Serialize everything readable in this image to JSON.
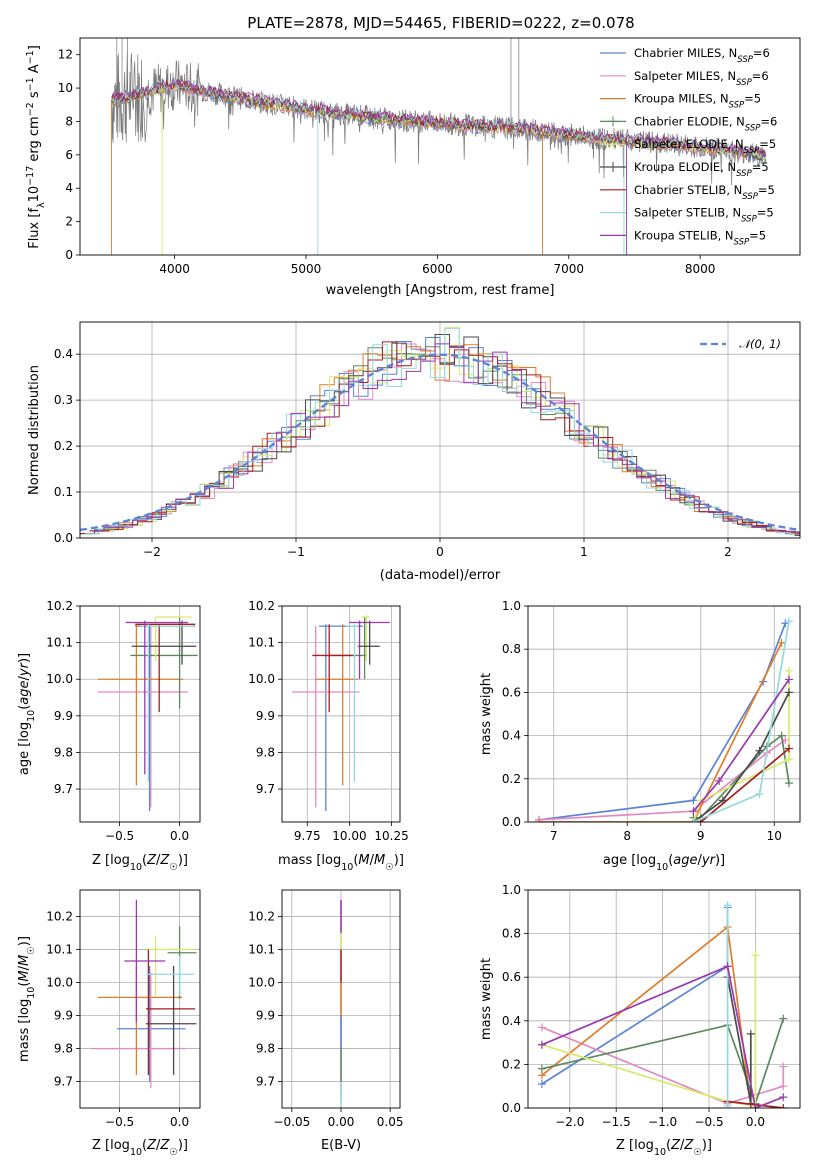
{
  "title": "PLATE=2878, MJD=54465, FIBERID=0222, z=0.078",
  "colors": [
    "#5b84d6",
    "#e38ac2",
    "#e07d2b",
    "#5c8a5e",
    "#d9ea6a",
    "#4a4a4a",
    "#a61e1e",
    "#93d9dc",
    "#9b38b0"
  ],
  "chart_data": [
    {
      "id": "spectrum",
      "type": "line",
      "title": "PLATE=2878, MJD=54465, FIBERID=0222, z=0.078",
      "xlabel": "wavelength [Angstrom, rest frame]",
      "ylabel": "Flux [f_λ 10^-17 erg cm^-2 s^-1 A^-1]",
      "ylabel_parts": [
        "Flux [f",
        "λ",
        "10",
        "−17",
        " erg cm",
        "−2",
        " s",
        "−1",
        " A",
        "−1",
        "]"
      ],
      "xlim": [
        3280,
        8760
      ],
      "ylim": [
        0,
        13
      ],
      "xticks": [
        4000,
        5000,
        6000,
        7000,
        8000
      ],
      "yticks": [
        0,
        2,
        4,
        6,
        8,
        10,
        12
      ],
      "grid": false,
      "legend_position": "top-right",
      "legend": [
        {
          "pre": "Chabrier MILES, N",
          "sub": "SSP",
          "post": "=6"
        },
        {
          "pre": "Salpeter MILES, N",
          "sub": "SSP",
          "post": "=6"
        },
        {
          "pre": "Kroupa MILES, N",
          "sub": "SSP",
          "post": "=5"
        },
        {
          "pre": "Chabrier ELODIE, N",
          "sub": "SSP",
          "post": "=6"
        },
        {
          "pre": "Salpeter ELODIE, N",
          "sub": "SSP",
          "post": "=5"
        },
        {
          "pre": "Kroupa ELODIE, N",
          "sub": "SSP",
          "post": "=5"
        },
        {
          "pre": "Chabrier STELIB, N",
          "sub": "SSP",
          "post": "=5"
        },
        {
          "pre": "Salpeter STELIB, N",
          "sub": "SSP",
          "post": "=5"
        },
        {
          "pre": "Kroupa STELIB, N",
          "sub": "SSP",
          "post": "=5"
        }
      ],
      "continuum": {
        "x": [
          3520,
          3700,
          4000,
          4300,
          4700,
          5200,
          5700,
          6200,
          6700,
          7200,
          7700,
          8200,
          8500
        ],
        "y": [
          9.2,
          9.6,
          10.2,
          9.7,
          9.1,
          8.5,
          8.1,
          7.8,
          7.5,
          7.0,
          6.7,
          6.3,
          5.9
        ]
      }
    },
    {
      "id": "residuals",
      "type": "area",
      "xlabel": "(data-model)/error",
      "ylabel": "Normed distribution",
      "xlim": [
        -2.5,
        2.5
      ],
      "ylim": [
        0,
        0.47
      ],
      "xticks": [
        -2,
        -1,
        0,
        1,
        2
      ],
      "xtick_labels": [
        "−2",
        "−1",
        "0",
        "1",
        "2"
      ],
      "yticks": [
        0.0,
        0.1,
        0.2,
        0.3,
        0.4
      ],
      "grid": true,
      "legend_position": "top-right",
      "legend": [
        "𝒩(0, 1)"
      ],
      "gaussian": {
        "mean": 0,
        "sigma": 1
      }
    },
    {
      "id": "age-vs-Z",
      "type": "scatter",
      "xlabel": "Z [log10(Z/Z☉)]",
      "ylabel": "age [log10(age/yr)]",
      "xlim": [
        -0.83,
        0.17
      ],
      "ylim": [
        9.61,
        10.2
      ],
      "xticks": [
        -0.5,
        0.0
      ],
      "xtick_labels": [
        "−0.5",
        "0.0"
      ],
      "yticks": [
        9.7,
        9.8,
        9.9,
        10.0,
        10.1,
        10.2
      ],
      "grid": true,
      "points": [
        {
          "x": -0.25,
          "y": 10.145,
          "xlo": -0.37,
          "xhi": 0.13,
          "ylo": 9.64,
          "yhi": 10.15
        },
        {
          "x": -0.24,
          "y": 9.965,
          "xlo": -0.68,
          "xhi": 0.07,
          "ylo": 9.65,
          "yhi": 10.145
        },
        {
          "x": -0.36,
          "y": 10.0,
          "xlo": -0.68,
          "xhi": 0.03,
          "ylo": 9.71,
          "yhi": 10.15
        },
        {
          "x": 0.0,
          "y": 10.065,
          "xlo": -0.41,
          "xhi": 0.15,
          "ylo": 9.92,
          "yhi": 10.17
        },
        {
          "x": -0.2,
          "y": 10.17,
          "xlo": -0.2,
          "xhi": 0.1,
          "ylo": 10.05,
          "yhi": 10.17
        },
        {
          "x": 0.02,
          "y": 10.09,
          "xlo": -0.4,
          "xhi": 0.14,
          "ylo": 10.04,
          "yhi": 10.16
        },
        {
          "x": -0.17,
          "y": 10.15,
          "xlo": -0.37,
          "xhi": 0.13,
          "ylo": 9.91,
          "yhi": 10.15
        },
        {
          "x": -0.26,
          "y": 10.145,
          "xlo": -0.32,
          "xhi": 0.12,
          "ylo": 9.72,
          "yhi": 10.15
        },
        {
          "x": -0.29,
          "y": 10.155,
          "xlo": -0.45,
          "xhi": 0.07,
          "ylo": 9.74,
          "yhi": 10.16
        }
      ]
    },
    {
      "id": "age-vs-mass",
      "type": "scatter",
      "xlabel": "mass [log10(M/M☉)]",
      "xlim": [
        9.6,
        10.3
      ],
      "ylim": [
        9.61,
        10.2
      ],
      "xticks": [
        9.75,
        10.0,
        10.25
      ],
      "xtick_labels": [
        "9.75",
        "10.00",
        "10.25"
      ],
      "yticks": [
        9.7,
        9.8,
        9.9,
        10.0,
        10.1,
        10.2
      ],
      "grid": true,
      "points": [
        {
          "x": 9.86,
          "y": 10.145,
          "xlo": 9.82,
          "xhi": 10.08,
          "ylo": 9.64,
          "yhi": 10.15
        },
        {
          "x": 9.8,
          "y": 9.965,
          "xlo": 9.66,
          "xhi": 10.06,
          "ylo": 9.65,
          "yhi": 10.145
        },
        {
          "x": 9.96,
          "y": 10.0,
          "xlo": 9.8,
          "xhi": 10.05,
          "ylo": 9.71,
          "yhi": 10.15
        },
        {
          "x": 10.09,
          "y": 10.065,
          "xlo": 9.87,
          "xhi": 10.1,
          "ylo": 10.0,
          "yhi": 10.17
        },
        {
          "x": 10.1,
          "y": 10.17,
          "xlo": 10.07,
          "xhi": 10.12,
          "ylo": 10.05,
          "yhi": 10.175
        },
        {
          "x": 10.12,
          "y": 10.09,
          "xlo": 10.05,
          "xhi": 10.18,
          "ylo": 10.04,
          "yhi": 10.16
        },
        {
          "x": 9.88,
          "y": 10.065,
          "xlo": 9.78,
          "xhi": 10.02,
          "ylo": 9.91,
          "yhi": 10.15
        },
        {
          "x": 10.03,
          "y": 10.145,
          "xlo": 9.98,
          "xhi": 10.05,
          "ylo": 9.72,
          "yhi": 10.15
        },
        {
          "x": 10.06,
          "y": 10.155,
          "xlo": 10.0,
          "xhi": 10.24,
          "ylo": 10.0,
          "yhi": 10.16
        }
      ]
    },
    {
      "id": "weight-vs-age",
      "type": "line",
      "xlabel": "age [log10(age/yr)]",
      "ylabel": "mass weight",
      "xlim": [
        6.65,
        10.35
      ],
      "ylim": [
        0,
        1.0
      ],
      "xticks": [
        7,
        8,
        9,
        10
      ],
      "yticks": [
        0.0,
        0.2,
        0.4,
        0.6,
        0.8,
        1.0
      ],
      "grid": true,
      "series": [
        {
          "x": [
            6.8,
            8.9,
            9.85,
            10.15
          ],
          "y": [
            0.01,
            0.1,
            0.65,
            0.92
          ]
        },
        {
          "x": [
            6.8,
            8.9,
            9.9,
            10.15
          ],
          "y": [
            0.01,
            0.05,
            0.32,
            0.38
          ]
        },
        {
          "x": [
            6.8,
            8.9,
            10.1
          ],
          "y": [
            0.0,
            0.0,
            0.83
          ]
        },
        {
          "x": [
            8.9,
            9.0,
            9.9,
            10.1,
            10.2
          ],
          "y": [
            0.02,
            0.02,
            0.35,
            0.4,
            0.18
          ]
        },
        {
          "x": [
            8.9,
            9.0,
            10.2,
            10.2
          ],
          "y": [
            0.0,
            0.1,
            0.29,
            0.7
          ]
        },
        {
          "x": [
            8.9,
            9.3,
            9.8,
            10.2
          ],
          "y": [
            0.0,
            0.1,
            0.33,
            0.6
          ]
        },
        {
          "x": [
            8.9,
            9.0,
            10.2
          ],
          "y": [
            0.0,
            0.0,
            0.34
          ]
        },
        {
          "x": [
            8.9,
            9.8,
            10.2
          ],
          "y": [
            0.0,
            0.13,
            0.93
          ]
        },
        {
          "x": [
            8.9,
            9.25,
            10.2
          ],
          "y": [
            0.05,
            0.19,
            0.66
          ]
        }
      ]
    },
    {
      "id": "mass-vs-Z",
      "type": "scatter",
      "xlabel": "Z [log10(Z/Z☉)]",
      "ylabel": "mass [log10(M/M☉)]",
      "xlim": [
        -0.83,
        0.17
      ],
      "ylim": [
        9.62,
        10.28
      ],
      "xticks": [
        -0.5,
        0.0
      ],
      "xtick_labels": [
        "−0.5",
        "0.0"
      ],
      "yticks": [
        9.7,
        9.8,
        9.9,
        10.0,
        10.1,
        10.2
      ],
      "grid": true,
      "points": [
        {
          "x": -0.25,
          "y": 9.86,
          "xlo": -0.52,
          "xhi": 0.05,
          "ylo": 9.7,
          "yhi": 10.05
        },
        {
          "x": -0.24,
          "y": 9.8,
          "xlo": -0.74,
          "xhi": 0.05,
          "ylo": 9.68,
          "yhi": 10.03
        },
        {
          "x": -0.36,
          "y": 9.955,
          "xlo": -0.68,
          "xhi": 0.02,
          "ylo": 9.72,
          "yhi": 10.05
        },
        {
          "x": 0.0,
          "y": 10.09,
          "xlo": -0.1,
          "xhi": 0.14,
          "ylo": 9.95,
          "yhi": 10.17
        },
        {
          "x": -0.2,
          "y": 10.1,
          "xlo": -0.27,
          "xhi": 0.13,
          "ylo": 9.96,
          "yhi": 10.14
        },
        {
          "x": -0.05,
          "y": 9.875,
          "xlo": -0.28,
          "xhi": 0.14,
          "ylo": 9.72,
          "yhi": 10.05
        },
        {
          "x": -0.26,
          "y": 9.92,
          "xlo": -0.28,
          "xhi": 0.13,
          "ylo": 9.72,
          "yhi": 10.1
        },
        {
          "x": 0.0,
          "y": 10.025,
          "xlo": -0.28,
          "xhi": 0.12,
          "ylo": 9.96,
          "yhi": 10.08
        },
        {
          "x": -0.36,
          "y": 10.065,
          "xlo": -0.46,
          "xhi": -0.12,
          "ylo": 9.88,
          "yhi": 10.25
        }
      ]
    },
    {
      "id": "mass-vs-EBV",
      "type": "scatter",
      "xlabel": "E(B-V)",
      "xlim": [
        -0.06,
        0.06
      ],
      "ylim": [
        9.62,
        10.28
      ],
      "xticks": [
        -0.05,
        0.0,
        0.05
      ],
      "xtick_labels": [
        "−0.05",
        "0.00",
        "0.05"
      ],
      "yticks": [
        9.7,
        9.8,
        9.9,
        10.0,
        10.1,
        10.2
      ],
      "grid": true,
      "points": [
        {
          "x": 0.0,
          "y": 10.0,
          "xlo": 0.0,
          "xhi": 0.0,
          "ylo": 9.65,
          "yhi": 10.25
        }
      ]
    },
    {
      "id": "weight-vs-Z",
      "type": "line",
      "xlabel": "Z [log10(Z/Z☉)]",
      "ylabel": "mass weight",
      "xlim": [
        -2.45,
        0.48
      ],
      "ylim": [
        0,
        1.0
      ],
      "xticks": [
        -2.0,
        -1.5,
        -1.0,
        -0.5,
        0.0
      ],
      "xtick_labels": [
        "−2.0",
        "−1.5",
        "−1.0",
        "−0.5",
        "0.0"
      ],
      "yticks": [
        0.0,
        0.2,
        0.4,
        0.6,
        0.8,
        1.0
      ],
      "grid": true,
      "series": [
        {
          "x": [
            -2.3,
            -0.3,
            -0.3
          ],
          "y": [
            0.11,
            0.65,
            0.92
          ]
        },
        {
          "x": [
            -2.3,
            -0.3,
            0.3,
            0.3
          ],
          "y": [
            0.37,
            0.02,
            0.1,
            0.19
          ]
        },
        {
          "x": [
            -2.3,
            -0.3,
            -0.05
          ],
          "y": [
            0.15,
            0.83,
            0.02
          ]
        },
        {
          "x": [
            -2.3,
            -0.3,
            0.0,
            0.3
          ],
          "y": [
            0.18,
            0.38,
            0.02,
            0.41
          ]
        },
        {
          "x": [
            -2.3,
            -0.3,
            0.0,
            0.0
          ],
          "y": [
            0.29,
            0.03,
            0.01,
            0.7
          ]
        },
        {
          "x": [
            -0.3,
            -0.05,
            -0.05
          ],
          "y": [
            0.6,
            0.02,
            0.34
          ]
        },
        {
          "x": [
            -0.3,
            0.3
          ],
          "y": [
            0.03,
            0.0
          ]
        },
        {
          "x": [
            -0.3,
            -0.3
          ],
          "y": [
            0.01,
            0.93
          ]
        },
        {
          "x": [
            -2.3,
            -0.3,
            0.0,
            0.3
          ],
          "y": [
            0.29,
            0.65,
            0.0,
            0.05
          ]
        }
      ]
    }
  ]
}
